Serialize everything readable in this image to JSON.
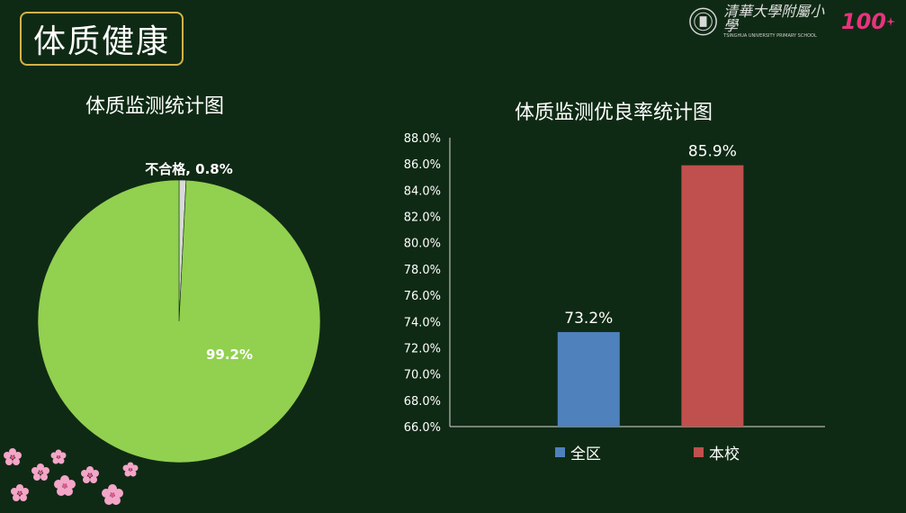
{
  "page": {
    "title": "体质健康"
  },
  "logo": {
    "text": "清華大學附屬小學",
    "subtext": "TSINGHUA UNIVERSITY PRIMARY SCHOOL",
    "anniversary": "100"
  },
  "colors": {
    "background": "#0f2a14",
    "pie_pass": "#92d050",
    "pie_fail": "#d9d9d9",
    "bar_district": "#4f81bd",
    "bar_school": "#c0504d",
    "title_border": "#d4b24a"
  },
  "chart_data": [
    {
      "type": "pie",
      "title": "体质监测统计图",
      "slices": [
        {
          "label": "不合格",
          "value": 0.8,
          "display": "不合格, 0.8%"
        },
        {
          "label": "",
          "value": 99.2,
          "display": "99.2%"
        }
      ]
    },
    {
      "type": "bar",
      "title": "体质监测优良率统计图",
      "categories": [
        "全区",
        "本校"
      ],
      "values": [
        73.2,
        85.9
      ],
      "value_labels": [
        "73.2%",
        "85.9%"
      ],
      "ylim": [
        66.0,
        88.0
      ],
      "yticks": [
        "66.0%",
        "68.0%",
        "70.0%",
        "72.0%",
        "74.0%",
        "76.0%",
        "78.0%",
        "80.0%",
        "82.0%",
        "84.0%",
        "86.0%",
        "88.0%"
      ],
      "legend": [
        "全区",
        "本校"
      ],
      "legend_position": "bottom",
      "grid": false
    }
  ]
}
